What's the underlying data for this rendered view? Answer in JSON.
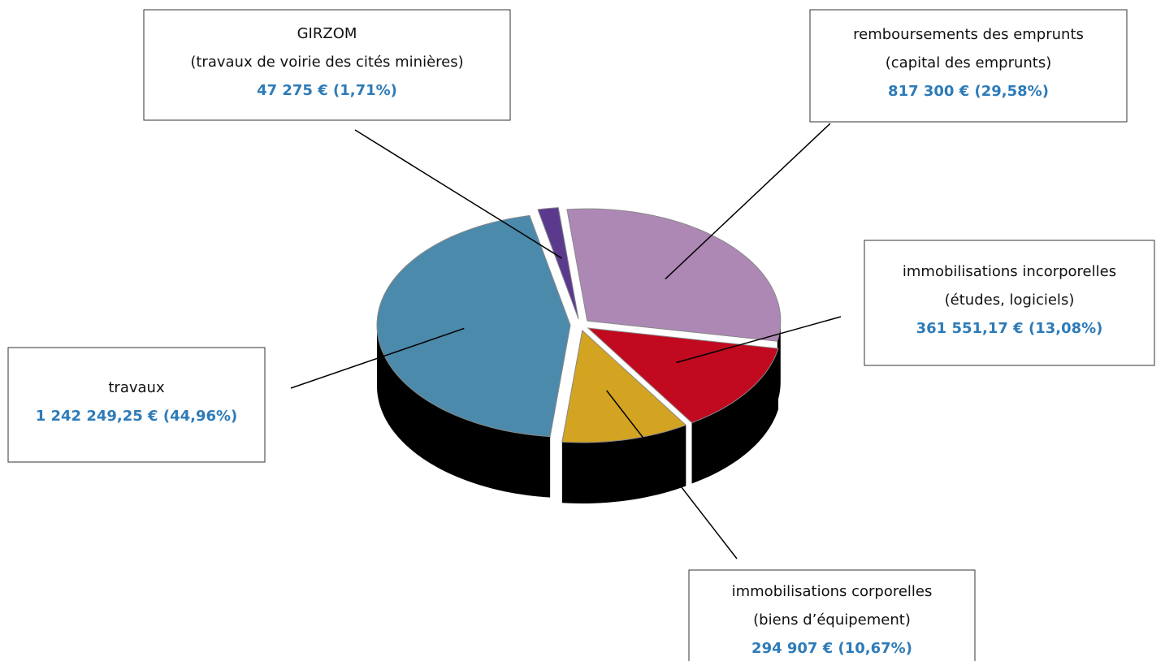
{
  "chart_data": {
    "type": "pie",
    "categories": [
      "remboursements des emprunts",
      "immobilisations incorporelles",
      "immobilisations corporelles",
      "travaux",
      "GIRZOM"
    ],
    "details": [
      "(capital des emprunts)",
      "(études, logiciels)",
      "(biens d’équipement)",
      null,
      "(travaux de voirie des cités minières)"
    ],
    "values": [
      817300,
      361551.17,
      294907,
      1242249.25,
      47275
    ],
    "value_labels": [
      "817 300 € (29,58%)",
      "361 551,17 € (13,08%)",
      "294 907 € (10,67%)",
      "1 242 249,25 € (44,96%)",
      "47 275 € (1,71%)"
    ],
    "colors": [
      "#ad88b5",
      "#c10a1f",
      "#d3a422",
      "#4b8aab",
      "#5b3a8e"
    ]
  }
}
